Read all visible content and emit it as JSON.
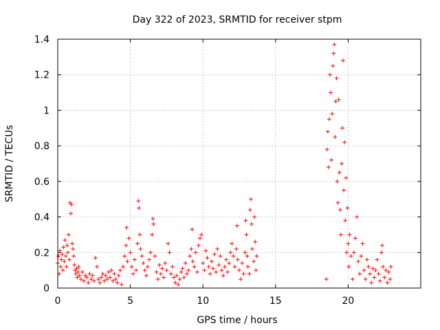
{
  "chart_data": {
    "type": "scatter",
    "title": "Day 322 of 2023, SRMTID for receiver stpm",
    "xlabel": "GPS time / hours",
    "ylabel": "SRMTID / TECUs",
    "xlim": [
      0,
      25
    ],
    "ylim": [
      0,
      1.4
    ],
    "xticks": [
      0,
      5,
      10,
      15,
      20
    ],
    "xtick_labels": [
      "0",
      "5",
      "10",
      "15",
      "20"
    ],
    "yticks": [
      0,
      0.2,
      0.4,
      0.6,
      0.8,
      1.0,
      1.2,
      1.4
    ],
    "ytick_labels": [
      "0",
      "0.2",
      "0.4",
      "0.6",
      "0.8",
      "1",
      "1.2",
      "1.4"
    ],
    "grid": true,
    "marker": "+",
    "series": [
      {
        "name": "SRMTID",
        "color": "#ff0000",
        "points": [
          [
            0.0,
            0.14
          ],
          [
            0.05,
            0.18
          ],
          [
            0.1,
            0.08
          ],
          [
            0.15,
            0.21
          ],
          [
            0.2,
            0.12
          ],
          [
            0.25,
            0.16
          ],
          [
            0.3,
            0.19
          ],
          [
            0.35,
            0.1
          ],
          [
            0.4,
            0.23
          ],
          [
            0.45,
            0.15
          ],
          [
            0.5,
            0.27
          ],
          [
            0.55,
            0.18
          ],
          [
            0.6,
            0.12
          ],
          [
            0.65,
            0.24
          ],
          [
            0.7,
            0.2
          ],
          [
            0.75,
            0.3
          ],
          [
            0.8,
            0.16
          ],
          [
            0.85,
            0.48
          ],
          [
            0.9,
            0.42
          ],
          [
            0.95,
            0.47
          ],
          [
            1.0,
            0.25
          ],
          [
            1.05,
            0.22
          ],
          [
            1.1,
            0.18
          ],
          [
            1.15,
            0.13
          ],
          [
            1.2,
            0.1
          ],
          [
            1.25,
            0.08
          ],
          [
            1.3,
            0.11
          ],
          [
            1.35,
            0.06
          ],
          [
            1.4,
            0.09
          ],
          [
            1.45,
            0.12
          ],
          [
            1.5,
            0.07
          ],
          [
            1.6,
            0.05
          ],
          [
            1.7,
            0.09
          ],
          [
            1.8,
            0.04
          ],
          [
            1.9,
            0.07
          ],
          [
            2.0,
            0.06
          ],
          [
            2.1,
            0.03
          ],
          [
            2.2,
            0.08
          ],
          [
            2.3,
            0.05
          ],
          [
            2.4,
            0.07
          ],
          [
            2.5,
            0.04
          ],
          [
            2.6,
            0.17
          ],
          [
            2.7,
            0.12
          ],
          [
            2.8,
            0.05
          ],
          [
            2.9,
            0.03
          ],
          [
            3.0,
            0.06
          ],
          [
            3.1,
            0.08
          ],
          [
            3.2,
            0.04
          ],
          [
            3.3,
            0.07
          ],
          [
            3.4,
            0.05
          ],
          [
            3.5,
            0.09
          ],
          [
            3.6,
            0.06
          ],
          [
            3.7,
            0.1
          ],
          [
            3.8,
            0.04
          ],
          [
            3.9,
            0.08
          ],
          [
            4.0,
            0.05
          ],
          [
            4.1,
            0.03
          ],
          [
            4.2,
            0.07
          ],
          [
            4.3,
            0.1
          ],
          [
            4.4,
            0.02
          ],
          [
            4.5,
            0.12
          ],
          [
            4.6,
            0.18
          ],
          [
            4.7,
            0.24
          ],
          [
            4.75,
            0.34
          ],
          [
            4.8,
            0.15
          ],
          [
            4.9,
            0.28
          ],
          [
            5.0,
            0.2
          ],
          [
            5.1,
            0.12
          ],
          [
            5.2,
            0.08
          ],
          [
            5.3,
            0.16
          ],
          [
            5.4,
            0.1
          ],
          [
            5.5,
            0.25
          ],
          [
            5.55,
            0.49
          ],
          [
            5.6,
            0.45
          ],
          [
            5.65,
            0.3
          ],
          [
            5.7,
            0.22
          ],
          [
            5.8,
            0.18
          ],
          [
            5.9,
            0.14
          ],
          [
            6.0,
            0.1
          ],
          [
            6.1,
            0.07
          ],
          [
            6.2,
            0.12
          ],
          [
            6.3,
            0.16
          ],
          [
            6.4,
            0.2
          ],
          [
            6.5,
            0.3
          ],
          [
            6.55,
            0.39
          ],
          [
            6.6,
            0.36
          ],
          [
            6.7,
            0.18
          ],
          [
            6.8,
            0.09
          ],
          [
            6.9,
            0.05
          ],
          [
            7.0,
            0.13
          ],
          [
            7.1,
            0.08
          ],
          [
            7.2,
            0.11
          ],
          [
            7.3,
            0.06
          ],
          [
            7.4,
            0.14
          ],
          [
            7.5,
            0.1
          ],
          [
            7.6,
            0.25
          ],
          [
            7.7,
            0.2
          ],
          [
            7.8,
            0.08
          ],
          [
            7.9,
            0.12
          ],
          [
            8.0,
            0.06
          ],
          [
            8.1,
            0.03
          ],
          [
            8.2,
            0.07
          ],
          [
            8.3,
            0.02
          ],
          [
            8.4,
            0.05
          ],
          [
            8.5,
            0.09
          ],
          [
            8.6,
            0.11
          ],
          [
            8.7,
            0.06
          ],
          [
            8.8,
            0.14
          ],
          [
            8.9,
            0.08
          ],
          [
            9.0,
            0.1
          ],
          [
            9.1,
            0.18
          ],
          [
            9.2,
            0.22
          ],
          [
            9.25,
            0.33
          ],
          [
            9.3,
            0.15
          ],
          [
            9.4,
            0.12
          ],
          [
            9.5,
            0.2
          ],
          [
            9.6,
            0.09
          ],
          [
            9.7,
            0.24
          ],
          [
            9.8,
            0.28
          ],
          [
            9.9,
            0.3
          ],
          [
            10.0,
            0.14
          ],
          [
            10.1,
            0.1
          ],
          [
            10.2,
            0.21
          ],
          [
            10.3,
            0.17
          ],
          [
            10.4,
            0.12
          ],
          [
            10.5,
            0.08
          ],
          [
            10.6,
            0.15
          ],
          [
            10.7,
            0.11
          ],
          [
            10.8,
            0.19
          ],
          [
            10.9,
            0.09
          ],
          [
            11.0,
            0.22
          ],
          [
            11.1,
            0.13
          ],
          [
            11.2,
            0.18
          ],
          [
            11.3,
            0.1
          ],
          [
            11.4,
            0.07
          ],
          [
            11.5,
            0.12
          ],
          [
            11.6,
            0.16
          ],
          [
            11.7,
            0.09
          ],
          [
            11.8,
            0.14
          ],
          [
            11.9,
            0.2
          ],
          [
            12.0,
            0.25
          ],
          [
            12.1,
            0.18
          ],
          [
            12.2,
            0.12
          ],
          [
            12.3,
            0.22
          ],
          [
            12.35,
            0.35
          ],
          [
            12.4,
            0.16
          ],
          [
            12.5,
            0.1
          ],
          [
            12.6,
            0.05
          ],
          [
            12.7,
            0.14
          ],
          [
            12.8,
            0.08
          ],
          [
            12.9,
            0.2
          ],
          [
            12.95,
            0.38
          ],
          [
            13.0,
            0.3
          ],
          [
            13.05,
            0.18
          ],
          [
            13.1,
            0.12
          ],
          [
            13.2,
            0.08
          ],
          [
            13.25,
            0.44
          ],
          [
            13.3,
            0.5
          ],
          [
            13.35,
            0.36
          ],
          [
            13.4,
            0.22
          ],
          [
            13.5,
            0.15
          ],
          [
            13.55,
            0.4
          ],
          [
            13.6,
            0.26
          ],
          [
            13.65,
            0.1
          ],
          [
            13.7,
            0.18
          ],
          [
            18.5,
            0.05
          ],
          [
            18.55,
            0.78
          ],
          [
            18.6,
            0.88
          ],
          [
            18.65,
            0.68
          ],
          [
            18.7,
            0.95
          ],
          [
            18.75,
            1.2
          ],
          [
            18.8,
            1.1
          ],
          [
            18.85,
            0.72
          ],
          [
            18.9,
            0.98
          ],
          [
            18.95,
            1.25
          ],
          [
            19.0,
            1.32
          ],
          [
            19.05,
            1.37
          ],
          [
            19.1,
            0.85
          ],
          [
            19.15,
            1.05
          ],
          [
            19.2,
            1.18
          ],
          [
            19.25,
            0.6
          ],
          [
            19.3,
            0.48
          ],
          [
            19.35,
            1.06
          ],
          [
            19.4,
            0.65
          ],
          [
            19.45,
            0.44
          ],
          [
            19.5,
            0.3
          ],
          [
            19.55,
            0.7
          ],
          [
            19.6,
            0.9
          ],
          [
            19.65,
            1.28
          ],
          [
            19.7,
            0.55
          ],
          [
            19.75,
            0.82
          ],
          [
            19.8,
            0.38
          ],
          [
            19.85,
            0.62
          ],
          [
            19.9,
            0.2
          ],
          [
            19.95,
            0.45
          ],
          [
            20.0,
            0.25
          ],
          [
            20.05,
            0.12
          ],
          [
            20.1,
            0.3
          ],
          [
            20.2,
            0.18
          ],
          [
            20.3,
            0.05
          ],
          [
            20.4,
            0.2
          ],
          [
            20.5,
            0.28
          ],
          [
            20.6,
            0.4
          ],
          [
            20.7,
            0.15
          ],
          [
            20.8,
            0.08
          ],
          [
            20.9,
            0.18
          ],
          [
            21.0,
            0.25
          ],
          [
            21.1,
            0.1
          ],
          [
            21.2,
            0.05
          ],
          [
            21.3,
            0.16
          ],
          [
            21.4,
            0.12
          ],
          [
            21.5,
            0.08
          ],
          [
            21.6,
            0.03
          ],
          [
            21.7,
            0.11
          ],
          [
            21.8,
            0.06
          ],
          [
            21.9,
            0.1
          ],
          [
            22.0,
            0.16
          ],
          [
            22.1,
            0.08
          ],
          [
            22.2,
            0.04
          ],
          [
            22.3,
            0.2
          ],
          [
            22.35,
            0.24
          ],
          [
            22.4,
            0.12
          ],
          [
            22.5,
            0.06
          ],
          [
            22.6,
            0.1
          ],
          [
            22.7,
            0.03
          ],
          [
            22.8,
            0.09
          ],
          [
            22.9,
            0.05
          ],
          [
            22.95,
            0.12
          ]
        ]
      }
    ]
  }
}
